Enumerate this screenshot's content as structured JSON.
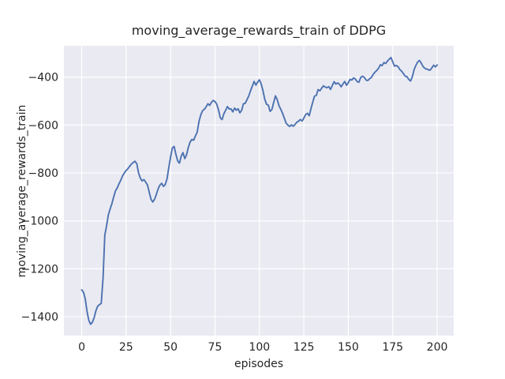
{
  "figure": {
    "title": "moving_average_rewards_train of DDPG",
    "xlabel": "episodes",
    "ylabel": "moving_average_rewards_train"
  },
  "chart_data": {
    "type": "line",
    "title": "moving_average_rewards_train of DDPG",
    "xlabel": "episodes",
    "ylabel": "moving_average_rewards_train",
    "x_ticks": [
      0,
      25,
      50,
      75,
      100,
      125,
      150,
      175,
      200
    ],
    "y_ticks": [
      -400,
      -600,
      -800,
      -1000,
      -1200,
      -1400
    ],
    "xlim": [
      -10,
      209.3
    ],
    "ylim": [
      -1479,
      -269
    ],
    "grid": true,
    "legend_position": "none",
    "style": "seaborn-darkgrid",
    "axes_bg_color": "#eaeaf2",
    "grid_color": "#ffffff",
    "line_color": "#4c72b0",
    "text_color": "#262626",
    "series": [
      {
        "name": "moving_average_rewards_train",
        "points": [
          [
            0,
            -1288
          ],
          [
            1,
            -1298
          ],
          [
            2,
            -1325
          ],
          [
            3,
            -1378
          ],
          [
            4,
            -1415
          ],
          [
            5,
            -1432
          ],
          [
            6,
            -1424
          ],
          [
            7,
            -1404
          ],
          [
            8,
            -1376
          ],
          [
            9,
            -1356
          ],
          [
            10,
            -1350
          ],
          [
            11,
            -1344
          ],
          [
            12,
            -1240
          ],
          [
            13,
            -1060
          ],
          [
            14,
            -1020
          ],
          [
            15,
            -975
          ],
          [
            16,
            -950
          ],
          [
            17,
            -928
          ],
          [
            18,
            -900
          ],
          [
            19,
            -875
          ],
          [
            20,
            -862
          ],
          [
            21,
            -845
          ],
          [
            22,
            -830
          ],
          [
            23,
            -812
          ],
          [
            24,
            -800
          ],
          [
            25,
            -790
          ],
          [
            26,
            -782
          ],
          [
            27,
            -772
          ],
          [
            28,
            -763
          ],
          [
            29,
            -756
          ],
          [
            30,
            -751
          ],
          [
            31,
            -762
          ],
          [
            32,
            -800
          ],
          [
            33,
            -822
          ],
          [
            34,
            -833
          ],
          [
            35,
            -828
          ],
          [
            36,
            -838
          ],
          [
            37,
            -850
          ],
          [
            38,
            -880
          ],
          [
            39,
            -910
          ],
          [
            40,
            -921
          ],
          [
            41,
            -910
          ],
          [
            42,
            -890
          ],
          [
            43,
            -866
          ],
          [
            44,
            -851
          ],
          [
            45,
            -843
          ],
          [
            46,
            -856
          ],
          [
            47,
            -849
          ],
          [
            48,
            -824
          ],
          [
            49,
            -778
          ],
          [
            50,
            -733
          ],
          [
            51,
            -696
          ],
          [
            52,
            -689
          ],
          [
            53,
            -722
          ],
          [
            54,
            -750
          ],
          [
            55,
            -759
          ],
          [
            56,
            -730
          ],
          [
            57,
            -715
          ],
          [
            58,
            -740
          ],
          [
            59,
            -724
          ],
          [
            60,
            -693
          ],
          [
            61,
            -671
          ],
          [
            62,
            -660
          ],
          [
            63,
            -663
          ],
          [
            64,
            -645
          ],
          [
            65,
            -630
          ],
          [
            66,
            -585
          ],
          [
            67,
            -557
          ],
          [
            68,
            -540
          ],
          [
            69,
            -534
          ],
          [
            70,
            -524
          ],
          [
            71,
            -511
          ],
          [
            72,
            -518
          ],
          [
            73,
            -505
          ],
          [
            74,
            -497
          ],
          [
            75,
            -502
          ],
          [
            76,
            -513
          ],
          [
            77,
            -537
          ],
          [
            78,
            -570
          ],
          [
            79,
            -577
          ],
          [
            80,
            -553
          ],
          [
            81,
            -538
          ],
          [
            82,
            -523
          ],
          [
            83,
            -533
          ],
          [
            84,
            -532
          ],
          [
            85,
            -545
          ],
          [
            86,
            -529
          ],
          [
            87,
            -538
          ],
          [
            88,
            -532
          ],
          [
            89,
            -549
          ],
          [
            90,
            -538
          ],
          [
            91,
            -511
          ],
          [
            92,
            -509
          ],
          [
            93,
            -494
          ],
          [
            94,
            -478
          ],
          [
            95,
            -457
          ],
          [
            96,
            -437
          ],
          [
            97,
            -418
          ],
          [
            98,
            -433
          ],
          [
            99,
            -421
          ],
          [
            100,
            -411
          ],
          [
            101,
            -428
          ],
          [
            102,
            -457
          ],
          [
            103,
            -492
          ],
          [
            104,
            -513
          ],
          [
            105,
            -517
          ],
          [
            106,
            -543
          ],
          [
            107,
            -535
          ],
          [
            108,
            -506
          ],
          [
            109,
            -478
          ],
          [
            110,
            -494
          ],
          [
            111,
            -519
          ],
          [
            112,
            -534
          ],
          [
            113,
            -551
          ],
          [
            114,
            -571
          ],
          [
            115,
            -592
          ],
          [
            116,
            -600
          ],
          [
            117,
            -606
          ],
          [
            118,
            -599
          ],
          [
            119,
            -605
          ],
          [
            120,
            -598
          ],
          [
            121,
            -588
          ],
          [
            122,
            -584
          ],
          [
            123,
            -577
          ],
          [
            124,
            -583
          ],
          [
            125,
            -571
          ],
          [
            126,
            -556
          ],
          [
            127,
            -551
          ],
          [
            128,
            -561
          ],
          [
            129,
            -531
          ],
          [
            130,
            -504
          ],
          [
            131,
            -479
          ],
          [
            132,
            -476
          ],
          [
            133,
            -452
          ],
          [
            134,
            -457
          ],
          [
            135,
            -446
          ],
          [
            136,
            -436
          ],
          [
            137,
            -441
          ],
          [
            138,
            -444
          ],
          [
            139,
            -439
          ],
          [
            140,
            -451
          ],
          [
            141,
            -435
          ],
          [
            142,
            -419
          ],
          [
            143,
            -429
          ],
          [
            144,
            -424
          ],
          [
            145,
            -430
          ],
          [
            146,
            -440
          ],
          [
            147,
            -428
          ],
          [
            148,
            -418
          ],
          [
            149,
            -434
          ],
          [
            150,
            -423
          ],
          [
            151,
            -409
          ],
          [
            152,
            -412
          ],
          [
            153,
            -403
          ],
          [
            154,
            -408
          ],
          [
            155,
            -419
          ],
          [
            156,
            -421
          ],
          [
            157,
            -401
          ],
          [
            158,
            -396
          ],
          [
            159,
            -401
          ],
          [
            160,
            -412
          ],
          [
            161,
            -414
          ],
          [
            162,
            -406
          ],
          [
            163,
            -401
          ],
          [
            164,
            -388
          ],
          [
            165,
            -379
          ],
          [
            166,
            -372
          ],
          [
            167,
            -363
          ],
          [
            168,
            -348
          ],
          [
            169,
            -352
          ],
          [
            170,
            -339
          ],
          [
            171,
            -343
          ],
          [
            172,
            -333
          ],
          [
            173,
            -325
          ],
          [
            174,
            -318
          ],
          [
            175,
            -336
          ],
          [
            176,
            -354
          ],
          [
            177,
            -351
          ],
          [
            178,
            -356
          ],
          [
            179,
            -368
          ],
          [
            180,
            -375
          ],
          [
            181,
            -385
          ],
          [
            182,
            -396
          ],
          [
            183,
            -398
          ],
          [
            184,
            -409
          ],
          [
            185,
            -416
          ],
          [
            186,
            -399
          ],
          [
            187,
            -369
          ],
          [
            188,
            -351
          ],
          [
            189,
            -337
          ],
          [
            190,
            -330
          ],
          [
            191,
            -341
          ],
          [
            192,
            -355
          ],
          [
            193,
            -363
          ],
          [
            194,
            -366
          ],
          [
            195,
            -369
          ],
          [
            196,
            -371
          ],
          [
            197,
            -361
          ],
          [
            198,
            -350
          ],
          [
            199,
            -357
          ],
          [
            200,
            -349
          ]
        ]
      }
    ]
  }
}
